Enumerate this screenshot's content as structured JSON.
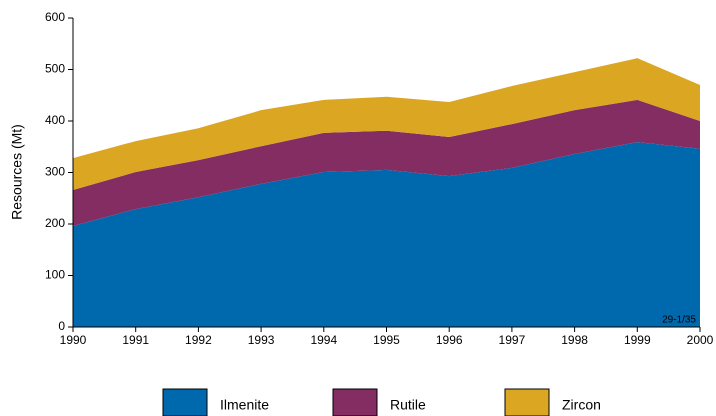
{
  "chart_data": {
    "type": "stacked-area",
    "y_label": "Resources (Mt)",
    "annotation": "29-1/35",
    "x": [
      1990,
      1991,
      1992,
      1993,
      1994,
      1995,
      1996,
      1997,
      1998,
      1999,
      2000
    ],
    "xlim": [
      1990,
      2000
    ],
    "xticks": [
      1990,
      1991,
      1992,
      1993,
      1994,
      1995,
      1996,
      1997,
      1998,
      1999,
      2000
    ],
    "ylim": [
      0,
      600
    ],
    "yticks": [
      0,
      100,
      200,
      300,
      400,
      500,
      600
    ],
    "grid": false,
    "legend": "bottom",
    "series": [
      {
        "name": "Ilmenite",
        "color": "#0068ad",
        "values": [
          196,
          229,
          252,
          278,
          301,
          305,
          293,
          309,
          336,
          359,
          346
        ]
      },
      {
        "name": "Rutile",
        "color": "#842d63",
        "values": [
          70,
          72,
          72,
          73,
          76,
          76,
          76,
          85,
          85,
          82,
          54
        ]
      },
      {
        "name": "Zircon",
        "color": "#dba723",
        "values": [
          62,
          60,
          62,
          70,
          64,
          66,
          68,
          74,
          74,
          81,
          70
        ]
      }
    ]
  }
}
